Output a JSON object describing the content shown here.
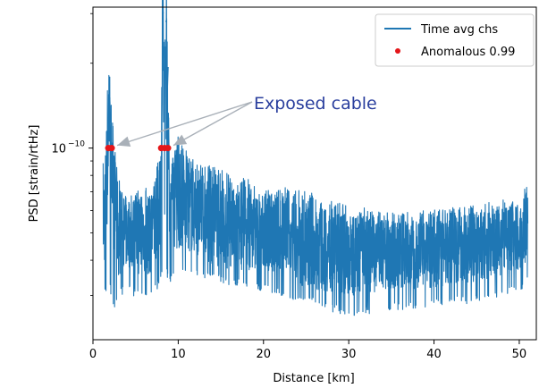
{
  "chart_data": {
    "type": "line",
    "xlabel": "Distance [km]",
    "ylabel": "PSD [strain/rtHz]",
    "xlim": [
      0,
      52
    ],
    "ylim_log10": [
      -10.68,
      -9.5
    ],
    "y_scale": "log",
    "x_ticks": [
      0,
      10,
      20,
      30,
      40,
      50
    ],
    "x_tick_labels": [
      "0",
      "10",
      "20",
      "30",
      "40",
      "50"
    ],
    "y_ticks": [
      1e-10
    ],
    "y_tick_labels": [
      {
        "base": "10",
        "exp": "−10"
      }
    ],
    "grid": false,
    "legend_position": "top-right",
    "series": [
      {
        "name": "Time avg chs",
        "color": "#1f77b4",
        "x": [
          1.2,
          1.5,
          1.9,
          2.0,
          2.2,
          2.6,
          3.0,
          4.0,
          5.0,
          6.0,
          7.0,
          8.0,
          8.2,
          8.4,
          8.6,
          9.0,
          10.0,
          12.0,
          15.0,
          20.0,
          25.0,
          30.0,
          35.0,
          40.0,
          45.0,
          50.0,
          51.0
        ],
        "y_log10": [
          -10.25,
          -10.2,
          -9.82,
          -10.0,
          -10.05,
          -10.2,
          -10.3,
          -10.3,
          -10.3,
          -10.32,
          -10.3,
          -10.15,
          -9.52,
          -10.0,
          -9.55,
          -10.2,
          -10.18,
          -10.23,
          -10.28,
          -10.3,
          -10.35,
          -10.38,
          -10.38,
          -10.38,
          -10.35,
          -10.32,
          -10.28
        ],
        "envelope_top_log10": [
          -10.1,
          -10.0,
          -9.82,
          -9.95,
          -10.0,
          -10.1,
          -10.15,
          -10.2,
          -10.2,
          -10.18,
          -10.2,
          -10.05,
          -9.52,
          -9.9,
          -9.55,
          -10.1,
          -10.0,
          -10.1,
          -10.12,
          -10.18,
          -10.2,
          -10.25,
          -10.28,
          -10.27,
          -10.25,
          -10.22,
          -10.18
        ],
        "envelope_bottom_log10": [
          -10.45,
          -10.5,
          -10.45,
          -10.48,
          -10.5,
          -10.55,
          -10.5,
          -10.48,
          -10.5,
          -10.52,
          -10.5,
          -10.45,
          -10.4,
          -10.45,
          -10.42,
          -10.45,
          -10.4,
          -10.42,
          -10.45,
          -10.48,
          -10.52,
          -10.57,
          -10.55,
          -10.53,
          -10.52,
          -10.48,
          -10.45
        ]
      },
      {
        "name": "Anomalous 0.99",
        "color": "#e4161a",
        "marker": "dot",
        "x": [
          1.8,
          2.2,
          8.0,
          8.4,
          8.8
        ],
        "y": [
          1e-10,
          1e-10,
          1e-10,
          1e-10,
          1e-10
        ]
      }
    ],
    "annotation": {
      "text": "Exposed cable",
      "color": "#2a3f9e",
      "arrow_color": "#a9b0b8",
      "targets_x": [
        2.0,
        8.6
      ],
      "target_y": 1e-10
    }
  }
}
